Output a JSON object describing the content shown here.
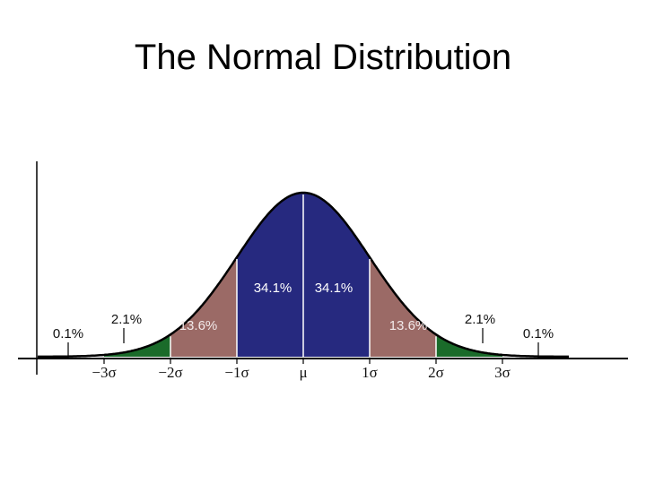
{
  "title": "The Normal Distribution",
  "chart_data": {
    "type": "area",
    "title": "The Normal Distribution",
    "xlabel": "",
    "ylabel": "",
    "x_range": [
      -4,
      4
    ],
    "grid": false,
    "tick_labels": [
      "−3σ",
      "−2σ",
      "−1σ",
      "μ",
      "1σ",
      "2σ",
      "3σ"
    ],
    "tick_positions": [
      -3,
      -2,
      -1,
      0,
      1,
      2,
      3
    ],
    "regions": [
      {
        "from": -3,
        "to": -2,
        "percent": "2.1%",
        "color": "#1a6b2a"
      },
      {
        "from": -2,
        "to": -1,
        "percent": "13.6%",
        "color": "#9b6a66"
      },
      {
        "from": -1,
        "to": 0,
        "percent": "34.1%",
        "color": "#26297f"
      },
      {
        "from": 0,
        "to": 1,
        "percent": "34.1%",
        "color": "#26297f"
      },
      {
        "from": 1,
        "to": 2,
        "percent": "13.6%",
        "color": "#9b6a66"
      },
      {
        "from": 2,
        "to": 3,
        "percent": "2.1%",
        "color": "#1a6b2a"
      }
    ],
    "tail_labels": [
      {
        "at": -3,
        "percent": "0.1%"
      },
      {
        "at": 3,
        "percent": "0.1%"
      }
    ]
  }
}
